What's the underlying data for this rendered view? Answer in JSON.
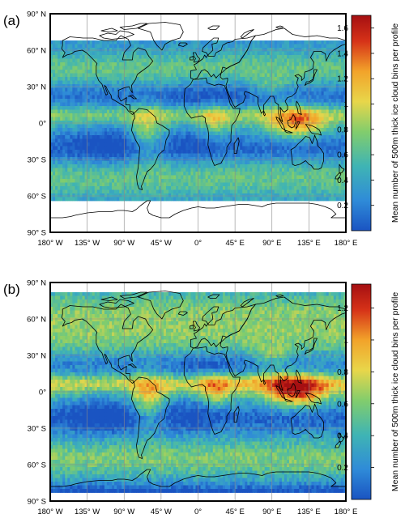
{
  "colors": {
    "colormap": [
      "#1a54c2",
      "#2f8bd8",
      "#3fb4b4",
      "#82cd6c",
      "#e8d64a",
      "#f2a32a",
      "#d63218",
      "#a50f12"
    ],
    "coast": "#000000",
    "frame": "#000000",
    "grid": "#8a8a8a"
  },
  "longitude_ticks": [
    "180° W",
    "135° W",
    "90° W",
    "45° W",
    "0°",
    "45° E",
    "90° E",
    "135° E",
    "180° E"
  ],
  "latitude_ticks": [
    "90° N",
    "60° N",
    "30° N",
    "0°",
    "30° S",
    "60° S",
    "90° S"
  ],
  "panels": [
    {
      "label": "(a)",
      "data_extent_lat": [
        -64,
        68
      ],
      "colorbar": {
        "title": "Mean number of 500m thick ice cloud bins per profile",
        "range": [
          0,
          1.7
        ],
        "tick_values": [
          0.2,
          0.4,
          0.6,
          0.8,
          1,
          1.2,
          1.4,
          1.6
        ],
        "tick_labels": [
          "0.2",
          "0.4",
          "0.6",
          "0.8",
          "1",
          "1.2",
          "1.4",
          "1.6"
        ]
      }
    },
    {
      "label": "(b)",
      "data_extent_lat": [
        -82,
        82
      ],
      "colorbar": {
        "title": "Mean number of 500m thick ice cloud bins per profile",
        "range": [
          0,
          1.35
        ],
        "tick_values": [
          0.2,
          0.4,
          0.6,
          0.8,
          1,
          1.2
        ],
        "tick_labels": [
          "0.2",
          "0.4",
          "0.6",
          "0.8",
          "1",
          "1.2"
        ]
      }
    }
  ]
}
